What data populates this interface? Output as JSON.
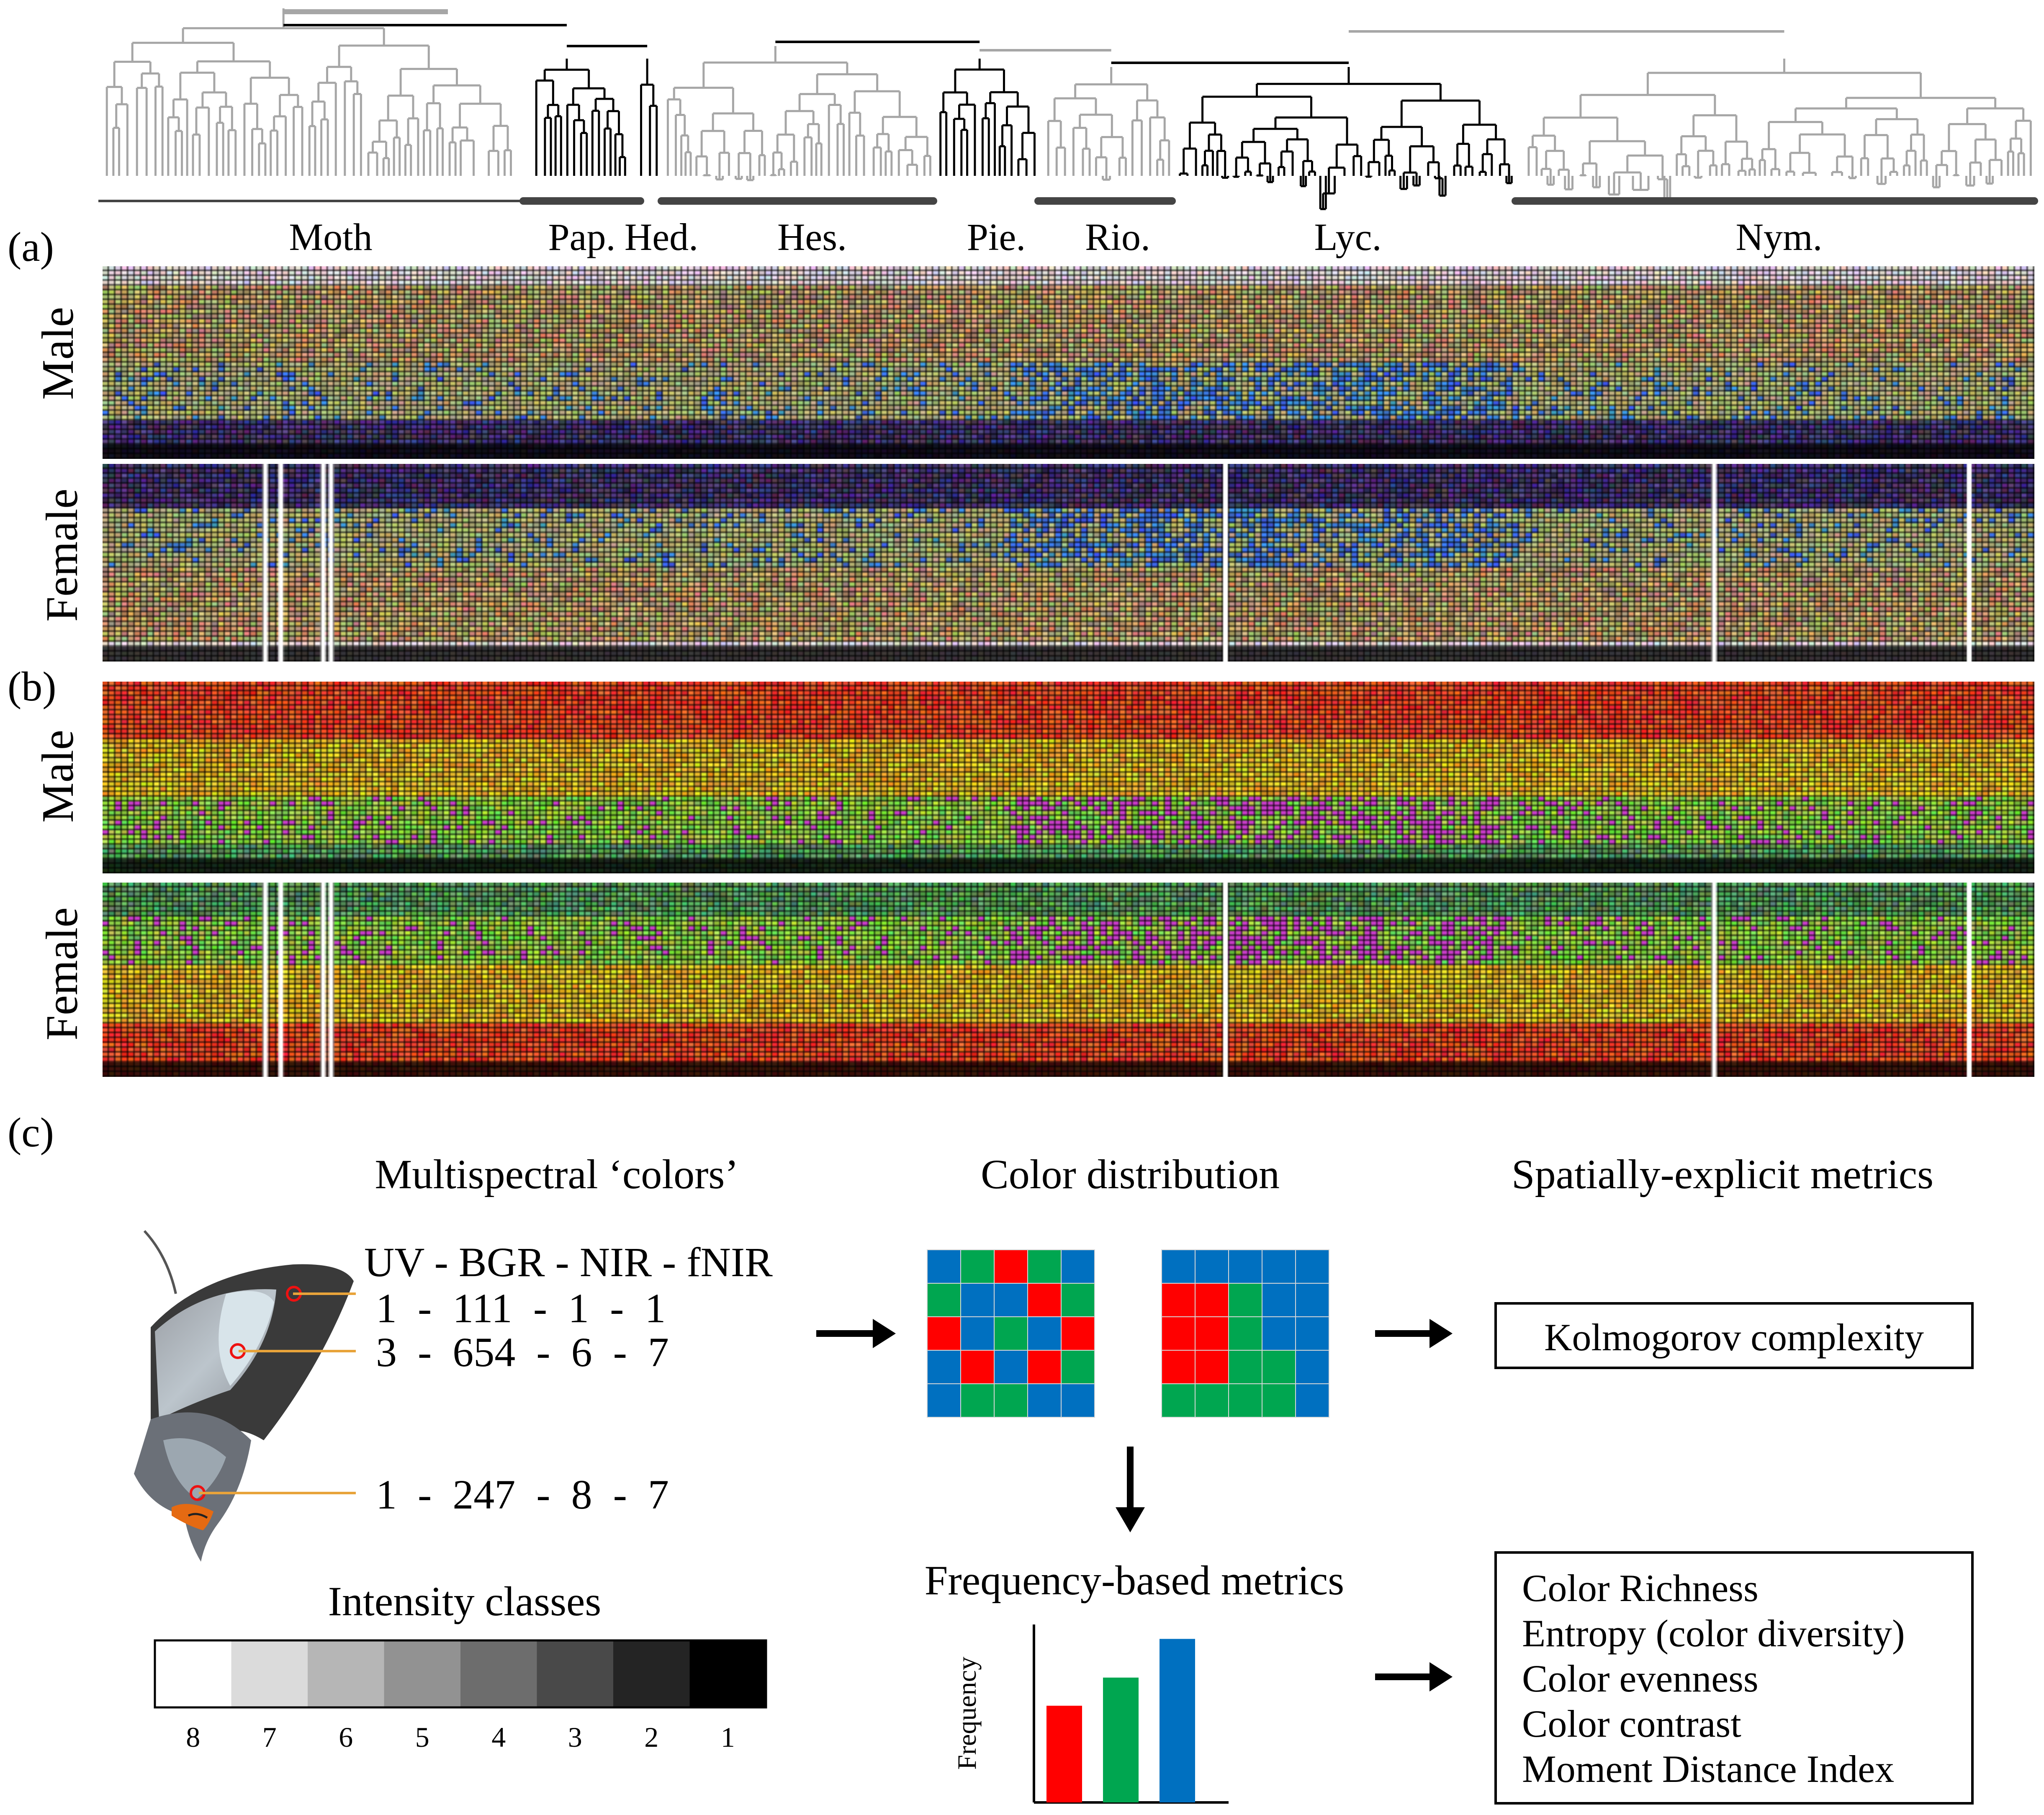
{
  "tree": {
    "clades": [
      {
        "label": "Moth",
        "color": "#a6a6a6"
      },
      {
        "label": "Pap.",
        "color": "#000000"
      },
      {
        "label": "Hed.",
        "color": "#000000"
      },
      {
        "label": "Hes.",
        "color": "#a6a6a6"
      },
      {
        "label": "Pie.",
        "color": "#000000"
      },
      {
        "label": "Rio.",
        "color": "#a6a6a6"
      },
      {
        "label": "Lyc.",
        "color": "#000000"
      },
      {
        "label": "Nym.",
        "color": "#a6a6a6"
      }
    ]
  },
  "panels": {
    "a": {
      "letter": "(a)",
      "rows": [
        "Male",
        "Female"
      ]
    },
    "b": {
      "letter": "(b)",
      "rows": [
        "Male",
        "Female"
      ]
    },
    "c": {
      "letter": "(c)"
    }
  },
  "multispectral": {
    "title": "Multispectral ‘colors’",
    "header": "UV - BGR - NIR - fNIR",
    "rows": [
      "1  -  111  -  1  -  1",
      "3  -  654  -  6  -  7",
      "1  -  247  -  8  -  7"
    ],
    "marker_color": "#e8a33a"
  },
  "intensity": {
    "title": "Intensity classes",
    "classes": [
      "8",
      "7",
      "6",
      "5",
      "4",
      "3",
      "2",
      "1"
    ]
  },
  "color_distribution": {
    "title": "Color distribution",
    "palette": {
      "R": "#ff0000",
      "G": "#00a650",
      "B": "#0070c0"
    },
    "grid_left": [
      [
        "B",
        "G",
        "R",
        "G",
        "B"
      ],
      [
        "G",
        "B",
        "B",
        "R",
        "G"
      ],
      [
        "R",
        "B",
        "G",
        "B",
        "R"
      ],
      [
        "B",
        "R",
        "B",
        "R",
        "G"
      ],
      [
        "B",
        "G",
        "G",
        "B",
        "B"
      ]
    ],
    "grid_right": [
      [
        "B",
        "B",
        "B",
        "B",
        "B"
      ],
      [
        "R",
        "R",
        "G",
        "B",
        "B"
      ],
      [
        "R",
        "R",
        "G",
        "B",
        "B"
      ],
      [
        "R",
        "R",
        "G",
        "G",
        "B"
      ],
      [
        "G",
        "G",
        "G",
        "G",
        "B"
      ]
    ]
  },
  "spatial": {
    "title": "Spatially-explicit metrics",
    "metrics": [
      "Kolmogorov complexity"
    ]
  },
  "frequency": {
    "title": "Frequency-based metrics",
    "ylabel": "Frequency",
    "bars": [
      {
        "color": "#ff0000",
        "value": 0.55
      },
      {
        "color": "#00a650",
        "value": 0.71
      },
      {
        "color": "#0070c0",
        "value": 0.93
      }
    ],
    "metrics": [
      "Color Richness",
      "Entropy (color diversity)",
      "Color evenness",
      "Color contrast",
      "Moment Distance Index"
    ]
  }
}
